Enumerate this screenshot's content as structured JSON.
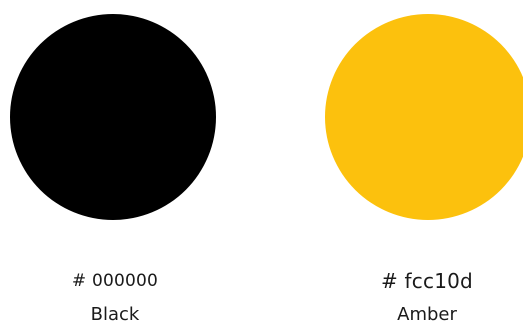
{
  "swatches": [
    {
      "hex_label": "# 000000",
      "name": "Black",
      "color": "#000000"
    },
    {
      "hex_label": "# fcc10d",
      "name": "Amber",
      "color": "#fcc10d"
    }
  ]
}
